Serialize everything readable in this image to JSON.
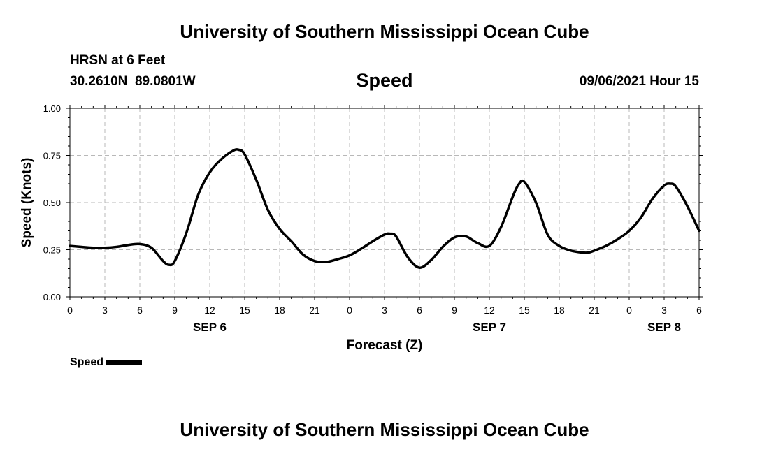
{
  "header": {
    "top_title": "University of Southern Mississippi Ocean Cube",
    "station": "HRSN at 6 Feet",
    "coords": "30.2610N  89.0801W",
    "variable": "Speed",
    "datetime": "09/06/2021 Hour 15"
  },
  "footer": {
    "bottom_title": "University of Southern Mississippi Ocean Cube"
  },
  "legend": {
    "label": "Speed"
  },
  "chart_data": {
    "type": "line",
    "xlabel": "Forecast (Z)",
    "ylabel": "Speed (Knots)",
    "xlim": [
      0,
      54
    ],
    "ylim": [
      0,
      1
    ],
    "yticks": [
      "0.00",
      "0.25",
      "0.50",
      "0.75",
      "1.00"
    ],
    "xticks": [
      "0",
      "3",
      "6",
      "9",
      "12",
      "15",
      "18",
      "21",
      "0",
      "3",
      "6",
      "9",
      "12",
      "15",
      "18",
      "21",
      "0",
      "3",
      "6"
    ],
    "date_labels": [
      {
        "label": "SEP 6",
        "at_hour": 12
      },
      {
        "label": "SEP 7",
        "at_hour": 36
      },
      {
        "label": "SEP 8",
        "at_hour": 51
      }
    ],
    "grid": true,
    "legend_position": "bottom-left",
    "line_color": "#000000",
    "series": [
      {
        "name": "Speed",
        "x": [
          0,
          1,
          2,
          3,
          4,
          5,
          6,
          7,
          8,
          8.5,
          9,
          10,
          11,
          12,
          13,
          14,
          14.5,
          15,
          16,
          17,
          18,
          19,
          20,
          21,
          22,
          23,
          24,
          25,
          26,
          27,
          27.5,
          28,
          29,
          30,
          31,
          32,
          33,
          34,
          35,
          36,
          37,
          38,
          38.5,
          39,
          40,
          41,
          42,
          43,
          44,
          44.5,
          45,
          46,
          47,
          48,
          49,
          50,
          51,
          51.5,
          52,
          53,
          54
        ],
        "y": [
          0.27,
          0.265,
          0.26,
          0.26,
          0.265,
          0.275,
          0.28,
          0.26,
          0.19,
          0.17,
          0.19,
          0.34,
          0.54,
          0.66,
          0.73,
          0.775,
          0.78,
          0.755,
          0.62,
          0.46,
          0.36,
          0.295,
          0.225,
          0.19,
          0.185,
          0.2,
          0.22,
          0.255,
          0.295,
          0.33,
          0.335,
          0.32,
          0.21,
          0.155,
          0.195,
          0.265,
          0.315,
          0.32,
          0.285,
          0.27,
          0.37,
          0.53,
          0.595,
          0.61,
          0.5,
          0.33,
          0.27,
          0.245,
          0.235,
          0.235,
          0.245,
          0.27,
          0.305,
          0.35,
          0.42,
          0.52,
          0.59,
          0.6,
          0.585,
          0.48,
          0.35
        ]
      }
    ]
  }
}
